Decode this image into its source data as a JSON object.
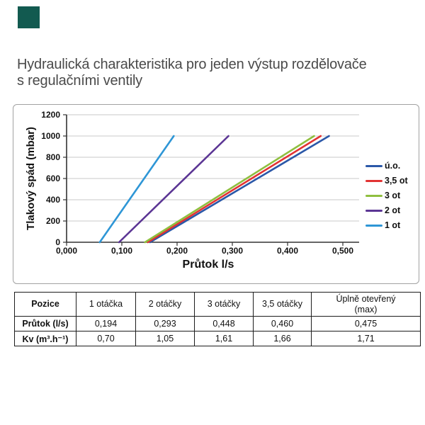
{
  "page": {
    "title_line1": "Hydraulická charakteristika pro jeden výstup rozdělovače",
    "title_line2": "s regulačními ventily",
    "corner_square_color": "#125a50"
  },
  "chart_data": {
    "type": "line",
    "title": "",
    "xlabel": "Průtok l/s",
    "ylabel": "Tlakový spád (mbar)",
    "xlim": [
      0,
      0.5
    ],
    "ylim": [
      0,
      1200
    ],
    "grid": "horizontal",
    "legend_position": "right",
    "x_ticks": [
      "0,000",
      "0,100",
      "0,200",
      "0,300",
      "0,400",
      "0,500"
    ],
    "x_tick_values": [
      0,
      0.1,
      0.2,
      0.3,
      0.4,
      0.5
    ],
    "y_ticks": [
      0,
      200,
      400,
      600,
      800,
      1000,
      1200
    ],
    "series": [
      {
        "name": "ú.o.",
        "color": "#2b58a8",
        "points": [
          [
            0.151,
            0
          ],
          [
            0.475,
            1000
          ]
        ]
      },
      {
        "name": "3,5 ot",
        "color": "#e23333",
        "points": [
          [
            0.147,
            0
          ],
          [
            0.46,
            1000
          ]
        ]
      },
      {
        "name": "3 ot",
        "color": "#8fbf3f",
        "points": [
          [
            0.142,
            0
          ],
          [
            0.448,
            1000
          ]
        ]
      },
      {
        "name": "2 ot",
        "color": "#5b3594",
        "points": [
          [
            0.095,
            0
          ],
          [
            0.293,
            1000
          ]
        ]
      },
      {
        "name": "1 ot",
        "color": "#2e96d6",
        "points": [
          [
            0.06,
            0
          ],
          [
            0.194,
            1000
          ]
        ]
      }
    ]
  },
  "table": {
    "headers": [
      "Pozice",
      "1 otáčka",
      "2 otáčky",
      "3 otáčky",
      "3,5 otáčky",
      "Úplně otevřený\n(max)"
    ],
    "rows": [
      {
        "label": "Průtok (l/s)",
        "values": [
          "0,194",
          "0,293",
          "0,448",
          "0,460",
          "0,475"
        ]
      },
      {
        "label": "Kv (m³.h⁻¹)",
        "values": [
          "0,70",
          "1,05",
          "1,61",
          "1,66",
          "1,71"
        ]
      }
    ]
  }
}
